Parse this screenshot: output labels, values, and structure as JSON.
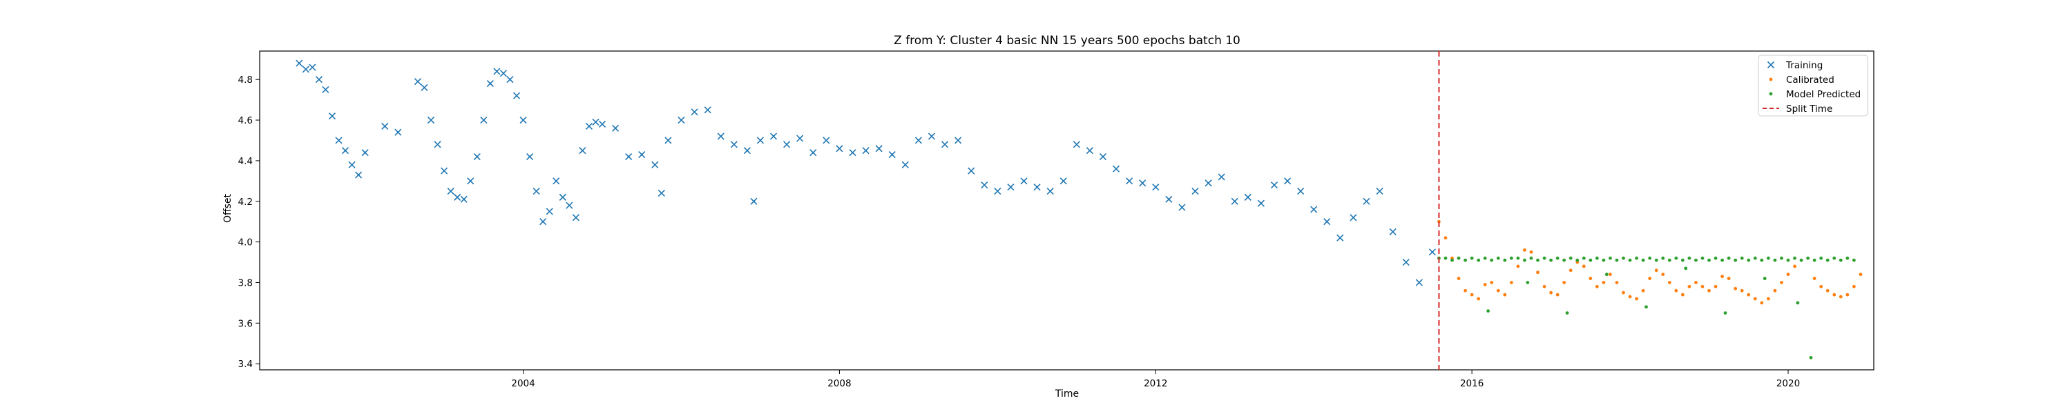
{
  "chart_data": {
    "type": "scatter",
    "title": "Z from Y: Cluster 4 basic NN 15 years 500 epochs batch 10",
    "xlabel": "Time",
    "ylabel": "Offset",
    "xlim": [
      "2000-09-01",
      "2021-02-01"
    ],
    "ylim": [
      3.37,
      4.94
    ],
    "xticks": [
      "2004",
      "2008",
      "2012",
      "2016",
      "2020"
    ],
    "yticks": [
      "3.4",
      "3.6",
      "3.8",
      "4.0",
      "4.2",
      "4.4",
      "4.6",
      "4.8"
    ],
    "grid": false,
    "legend": {
      "position": "top-right",
      "entries": [
        "Training",
        "Calibrated",
        "Model Predicted",
        "Split Time"
      ]
    },
    "split_time": "2015-08-01",
    "series": [
      {
        "name": "Training",
        "marker": "x",
        "color": "#1f77b4",
        "points": [
          [
            "2001-03-01",
            4.88
          ],
          [
            "2001-04-01",
            4.85
          ],
          [
            "2001-05-01",
            4.86
          ],
          [
            "2001-06-01",
            4.8
          ],
          [
            "2001-07-01",
            4.75
          ],
          [
            "2001-08-01",
            4.62
          ],
          [
            "2001-09-01",
            4.5
          ],
          [
            "2001-10-01",
            4.45
          ],
          [
            "2001-11-01",
            4.38
          ],
          [
            "2001-12-01",
            4.33
          ],
          [
            "2002-01-01",
            4.44
          ],
          [
            "2002-04-01",
            4.57
          ],
          [
            "2002-06-01",
            4.54
          ],
          [
            "2002-09-01",
            4.79
          ],
          [
            "2002-10-01",
            4.76
          ],
          [
            "2002-11-01",
            4.6
          ],
          [
            "2002-12-01",
            4.48
          ],
          [
            "2003-01-01",
            4.35
          ],
          [
            "2003-02-01",
            4.25
          ],
          [
            "2003-03-01",
            4.22
          ],
          [
            "2003-04-01",
            4.21
          ],
          [
            "2003-05-01",
            4.3
          ],
          [
            "2003-06-01",
            4.42
          ],
          [
            "2003-07-01",
            4.6
          ],
          [
            "2003-08-01",
            4.78
          ],
          [
            "2003-09-01",
            4.84
          ],
          [
            "2003-10-01",
            4.83
          ],
          [
            "2003-11-01",
            4.8
          ],
          [
            "2003-12-01",
            4.72
          ],
          [
            "2004-01-01",
            4.6
          ],
          [
            "2004-02-01",
            4.42
          ],
          [
            "2004-03-01",
            4.25
          ],
          [
            "2004-04-01",
            4.1
          ],
          [
            "2004-05-01",
            4.15
          ],
          [
            "2004-06-01",
            4.3
          ],
          [
            "2004-07-01",
            4.22
          ],
          [
            "2004-08-01",
            4.18
          ],
          [
            "2004-09-01",
            4.12
          ],
          [
            "2004-10-01",
            4.45
          ],
          [
            "2004-11-01",
            4.57
          ],
          [
            "2004-12-01",
            4.59
          ],
          [
            "2005-01-01",
            4.58
          ],
          [
            "2005-03-01",
            4.56
          ],
          [
            "2005-05-01",
            4.42
          ],
          [
            "2005-07-01",
            4.43
          ],
          [
            "2005-09-01",
            4.38
          ],
          [
            "2005-10-01",
            4.24
          ],
          [
            "2005-11-01",
            4.5
          ],
          [
            "2006-01-01",
            4.6
          ],
          [
            "2006-03-01",
            4.64
          ],
          [
            "2006-05-01",
            4.65
          ],
          [
            "2006-07-01",
            4.52
          ],
          [
            "2006-09-01",
            4.48
          ],
          [
            "2006-11-01",
            4.45
          ],
          [
            "2006-12-01",
            4.2
          ],
          [
            "2007-01-01",
            4.5
          ],
          [
            "2007-03-01",
            4.52
          ],
          [
            "2007-05-01",
            4.48
          ],
          [
            "2007-07-01",
            4.51
          ],
          [
            "2007-09-01",
            4.44
          ],
          [
            "2007-11-01",
            4.5
          ],
          [
            "2008-01-01",
            4.46
          ],
          [
            "2008-03-01",
            4.44
          ],
          [
            "2008-05-01",
            4.45
          ],
          [
            "2008-07-01",
            4.46
          ],
          [
            "2008-09-01",
            4.43
          ],
          [
            "2008-11-01",
            4.38
          ],
          [
            "2009-01-01",
            4.5
          ],
          [
            "2009-03-01",
            4.52
          ],
          [
            "2009-05-01",
            4.48
          ],
          [
            "2009-07-01",
            4.5
          ],
          [
            "2009-09-01",
            4.35
          ],
          [
            "2009-11-01",
            4.28
          ],
          [
            "2010-01-01",
            4.25
          ],
          [
            "2010-03-01",
            4.27
          ],
          [
            "2010-05-01",
            4.3
          ],
          [
            "2010-07-01",
            4.27
          ],
          [
            "2010-09-01",
            4.25
          ],
          [
            "2010-11-01",
            4.3
          ],
          [
            "2011-01-01",
            4.48
          ],
          [
            "2011-03-01",
            4.45
          ],
          [
            "2011-05-01",
            4.42
          ],
          [
            "2011-07-01",
            4.36
          ],
          [
            "2011-09-01",
            4.3
          ],
          [
            "2011-11-01",
            4.29
          ],
          [
            "2012-01-01",
            4.27
          ],
          [
            "2012-03-01",
            4.21
          ],
          [
            "2012-05-01",
            4.17
          ],
          [
            "2012-07-01",
            4.25
          ],
          [
            "2012-09-01",
            4.29
          ],
          [
            "2012-11-01",
            4.32
          ],
          [
            "2013-01-01",
            4.2
          ],
          [
            "2013-03-01",
            4.22
          ],
          [
            "2013-05-01",
            4.19
          ],
          [
            "2013-07-01",
            4.28
          ],
          [
            "2013-09-01",
            4.3
          ],
          [
            "2013-11-01",
            4.25
          ],
          [
            "2014-01-01",
            4.16
          ],
          [
            "2014-03-01",
            4.1
          ],
          [
            "2014-05-01",
            4.02
          ],
          [
            "2014-07-01",
            4.12
          ],
          [
            "2014-09-01",
            4.2
          ],
          [
            "2014-11-01",
            4.25
          ],
          [
            "2015-01-01",
            4.05
          ],
          [
            "2015-03-01",
            3.9
          ],
          [
            "2015-05-01",
            3.8
          ],
          [
            "2015-07-01",
            3.95
          ]
        ]
      },
      {
        "name": "Calibrated",
        "marker": "dot",
        "color": "#ff7f0e",
        "points": [
          [
            "2015-08-01",
            4.1
          ],
          [
            "2015-09-01",
            4.02
          ],
          [
            "2015-10-01",
            3.92
          ],
          [
            "2015-11-01",
            3.82
          ],
          [
            "2015-12-01",
            3.76
          ],
          [
            "2016-01-01",
            3.74
          ],
          [
            "2016-02-01",
            3.72
          ],
          [
            "2016-03-01",
            3.79
          ],
          [
            "2016-04-01",
            3.8
          ],
          [
            "2016-05-01",
            3.76
          ],
          [
            "2016-06-01",
            3.74
          ],
          [
            "2016-07-01",
            3.8
          ],
          [
            "2016-08-01",
            3.88
          ],
          [
            "2016-09-01",
            3.96
          ],
          [
            "2016-10-01",
            3.95
          ],
          [
            "2016-11-01",
            3.85
          ],
          [
            "2016-12-01",
            3.78
          ],
          [
            "2017-01-01",
            3.75
          ],
          [
            "2017-02-01",
            3.74
          ],
          [
            "2017-03-01",
            3.8
          ],
          [
            "2017-04-01",
            3.86
          ],
          [
            "2017-05-01",
            3.9
          ],
          [
            "2017-06-01",
            3.88
          ],
          [
            "2017-07-01",
            3.82
          ],
          [
            "2017-08-01",
            3.78
          ],
          [
            "2017-09-01",
            3.8
          ],
          [
            "2017-10-01",
            3.84
          ],
          [
            "2017-11-01",
            3.8
          ],
          [
            "2017-12-01",
            3.75
          ],
          [
            "2018-01-01",
            3.73
          ],
          [
            "2018-02-01",
            3.72
          ],
          [
            "2018-03-01",
            3.76
          ],
          [
            "2018-04-01",
            3.82
          ],
          [
            "2018-05-01",
            3.86
          ],
          [
            "2018-06-01",
            3.84
          ],
          [
            "2018-07-01",
            3.8
          ],
          [
            "2018-08-01",
            3.76
          ],
          [
            "2018-09-01",
            3.74
          ],
          [
            "2018-10-01",
            3.78
          ],
          [
            "2018-11-01",
            3.8
          ],
          [
            "2018-12-01",
            3.78
          ],
          [
            "2019-01-01",
            3.76
          ],
          [
            "2019-02-01",
            3.78
          ],
          [
            "2019-03-01",
            3.83
          ],
          [
            "2019-04-01",
            3.82
          ],
          [
            "2019-05-01",
            3.77
          ],
          [
            "2019-06-01",
            3.76
          ],
          [
            "2019-07-01",
            3.74
          ],
          [
            "2019-08-01",
            3.72
          ],
          [
            "2019-09-01",
            3.7
          ],
          [
            "2019-10-01",
            3.72
          ],
          [
            "2019-11-01",
            3.76
          ],
          [
            "2019-12-01",
            3.8
          ],
          [
            "2020-01-01",
            3.84
          ],
          [
            "2020-02-01",
            3.88
          ],
          [
            "2020-05-01",
            3.82
          ],
          [
            "2020-06-01",
            3.78
          ],
          [
            "2020-07-01",
            3.76
          ],
          [
            "2020-08-01",
            3.74
          ],
          [
            "2020-09-01",
            3.73
          ],
          [
            "2020-10-01",
            3.74
          ],
          [
            "2020-11-01",
            3.78
          ],
          [
            "2020-12-01",
            3.84
          ]
        ]
      },
      {
        "name": "Model Predicted",
        "marker": "dot",
        "color": "#2ca02c",
        "points": [
          [
            "2015-08-01",
            3.92
          ],
          [
            "2015-09-01",
            3.92
          ],
          [
            "2015-10-01",
            3.91
          ],
          [
            "2015-11-01",
            3.92
          ],
          [
            "2015-12-01",
            3.91
          ],
          [
            "2016-01-01",
            3.92
          ],
          [
            "2016-02-01",
            3.91
          ],
          [
            "2016-03-01",
            3.92
          ],
          [
            "2016-04-01",
            3.91
          ],
          [
            "2016-05-01",
            3.92
          ],
          [
            "2016-06-01",
            3.91
          ],
          [
            "2016-07-01",
            3.92
          ],
          [
            "2016-08-01",
            3.92
          ],
          [
            "2016-09-01",
            3.91
          ],
          [
            "2016-10-01",
            3.92
          ],
          [
            "2016-11-01",
            3.91
          ],
          [
            "2016-12-01",
            3.92
          ],
          [
            "2017-01-01",
            3.91
          ],
          [
            "2017-02-01",
            3.92
          ],
          [
            "2017-03-01",
            3.91
          ],
          [
            "2017-04-01",
            3.92
          ],
          [
            "2017-05-01",
            3.91
          ],
          [
            "2017-06-01",
            3.92
          ],
          [
            "2017-07-01",
            3.91
          ],
          [
            "2017-08-01",
            3.92
          ],
          [
            "2017-09-01",
            3.91
          ],
          [
            "2017-10-01",
            3.92
          ],
          [
            "2017-11-01",
            3.91
          ],
          [
            "2017-12-01",
            3.92
          ],
          [
            "2018-01-01",
            3.91
          ],
          [
            "2018-02-01",
            3.92
          ],
          [
            "2018-03-01",
            3.91
          ],
          [
            "2018-04-01",
            3.92
          ],
          [
            "2018-05-01",
            3.91
          ],
          [
            "2018-06-01",
            3.92
          ],
          [
            "2018-07-01",
            3.91
          ],
          [
            "2018-08-01",
            3.92
          ],
          [
            "2018-09-01",
            3.91
          ],
          [
            "2018-10-01",
            3.92
          ],
          [
            "2018-11-01",
            3.91
          ],
          [
            "2018-12-01",
            3.92
          ],
          [
            "2019-01-01",
            3.91
          ],
          [
            "2019-02-01",
            3.92
          ],
          [
            "2019-03-01",
            3.91
          ],
          [
            "2019-04-01",
            3.92
          ],
          [
            "2019-05-01",
            3.91
          ],
          [
            "2019-06-01",
            3.92
          ],
          [
            "2019-07-01",
            3.91
          ],
          [
            "2019-08-01",
            3.92
          ],
          [
            "2019-09-01",
            3.91
          ],
          [
            "2019-10-01",
            3.92
          ],
          [
            "2019-11-01",
            3.91
          ],
          [
            "2019-12-01",
            3.92
          ],
          [
            "2020-01-01",
            3.91
          ],
          [
            "2020-02-01",
            3.92
          ],
          [
            "2020-03-01",
            3.91
          ],
          [
            "2020-04-01",
            3.92
          ],
          [
            "2020-05-01",
            3.91
          ],
          [
            "2020-06-01",
            3.92
          ],
          [
            "2020-07-01",
            3.91
          ],
          [
            "2020-08-01",
            3.92
          ],
          [
            "2020-09-01",
            3.91
          ],
          [
            "2020-10-01",
            3.92
          ],
          [
            "2020-11-01",
            3.91
          ],
          [
            "2016-03-15",
            3.66
          ],
          [
            "2016-09-15",
            3.8
          ],
          [
            "2017-03-15",
            3.65
          ],
          [
            "2017-09-15",
            3.84
          ],
          [
            "2018-03-15",
            3.68
          ],
          [
            "2018-09-15",
            3.87
          ],
          [
            "2019-03-15",
            3.65
          ],
          [
            "2019-09-15",
            3.82
          ],
          [
            "2020-02-15",
            3.7
          ],
          [
            "2020-04-15",
            3.43
          ]
        ]
      }
    ]
  }
}
